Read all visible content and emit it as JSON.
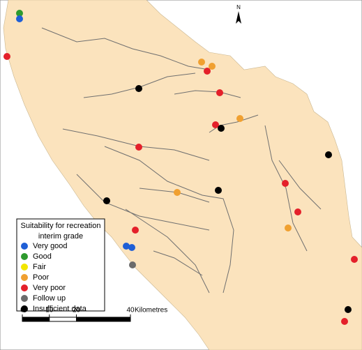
{
  "legend": {
    "title_lines": [
      "Suitability for recreation",
      "interim grade"
    ],
    "items": [
      {
        "label": "Very good",
        "color": "#1f5fd6"
      },
      {
        "label": "Good",
        "color": "#2e9a2e"
      },
      {
        "label": "Fair",
        "color": "#f2e600"
      },
      {
        "label": "Poor",
        "color": "#f0a030"
      },
      {
        "label": "Very poor",
        "color": "#e4202a"
      },
      {
        "label": "Follow up",
        "color": "#6b6b6b"
      },
      {
        "label": "Insufficient data",
        "color": "#000000"
      }
    ]
  },
  "scale_bar": {
    "ticks": [
      0,
      10,
      20,
      40
    ],
    "unit": "Kilometres"
  },
  "north_label": "N"
}
